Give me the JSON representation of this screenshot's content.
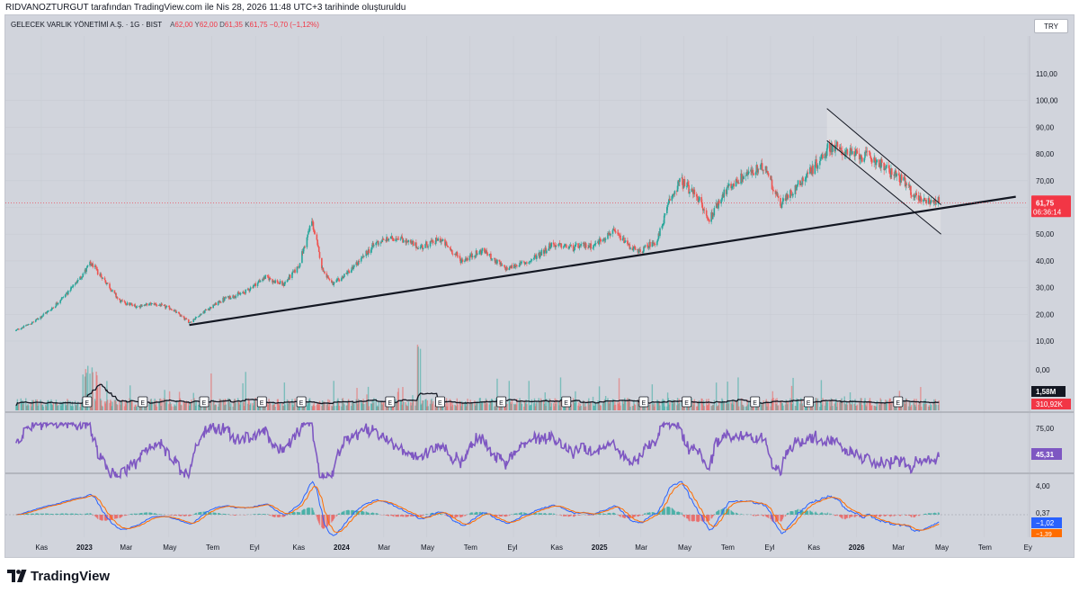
{
  "header": {
    "credit": "RIDVANOZTURGUT tarafından TradingView.com ile Nis 28, 2026 11:48 UTC+3 tarihinde oluşturuldu"
  },
  "legend": {
    "symbol": "GELECEK VARLIK YÖNETİMİ A.Ş. · 1G · BIST",
    "open_label": "A",
    "open": "62,00",
    "high_label": "Y",
    "high": "62,00",
    "low_label": "D",
    "low": "61,35",
    "close_label": "K",
    "close": "61,75",
    "change": "−0,70 (−1,12%)"
  },
  "currency": "TRY",
  "footer": {
    "brand": "TradingView"
  },
  "colors": {
    "background": "#d1d4dc",
    "up": "#26a69a",
    "down": "#ef5350",
    "rsi": "#7e57c2",
    "macd": "#2962ff",
    "signal": "#ff6d00",
    "trendline": "#131722",
    "last_price_badge": "#f23645"
  },
  "chart_data": [
    {
      "type": "candlestick",
      "pane": "price",
      "ylim": [
        10,
        110
      ],
      "y_ticks": [
        "110,00",
        "100,00",
        "90,00",
        "80,00",
        "70,00",
        "60,00",
        "50,00",
        "40,00",
        "30,00",
        "20,00",
        "10,00"
      ],
      "x_ticks": [
        "Kas",
        "2023",
        "Mar",
        "May",
        "Tem",
        "Eyl",
        "Kas",
        "2024",
        "Mar",
        "May",
        "Tem",
        "Eyl",
        "Kas",
        "2025",
        "Mar",
        "May",
        "Tem",
        "Eyl",
        "Kas",
        "2026",
        "Mar",
        "May",
        "Tem",
        "Ey"
      ],
      "x_tick_dates": [
        "2022-11",
        "2023-01",
        "2023-03",
        "2023-05",
        "2023-07",
        "2023-09",
        "2023-11",
        "2024-01",
        "2024-03",
        "2024-05",
        "2024-07",
        "2024-09",
        "2024-11",
        "2025-01",
        "2025-03",
        "2025-05",
        "2025-07",
        "2025-09",
        "2025-11",
        "2026-01",
        "2026-03",
        "2026-05",
        "2026-07",
        "2026-09"
      ],
      "close_path": [
        [
          "2022-09-26",
          14
        ],
        [
          "2022-10-20",
          17
        ],
        [
          "2022-11-15",
          22
        ],
        [
          "2022-12-15",
          30
        ],
        [
          "2023-01-10",
          39
        ],
        [
          "2023-02-01",
          32
        ],
        [
          "2023-02-20",
          25
        ],
        [
          "2023-03-15",
          23
        ],
        [
          "2023-04-10",
          24
        ],
        [
          "2023-05-05",
          22
        ],
        [
          "2023-05-30",
          17
        ],
        [
          "2023-06-25",
          22
        ],
        [
          "2023-07-20",
          26
        ],
        [
          "2023-08-15",
          28
        ],
        [
          "2023-09-15",
          34
        ],
        [
          "2023-10-10",
          31
        ],
        [
          "2023-11-01",
          38
        ],
        [
          "2023-11-20",
          55
        ],
        [
          "2023-12-05",
          37
        ],
        [
          "2023-12-20",
          31
        ],
        [
          "2024-01-20",
          38
        ],
        [
          "2024-02-20",
          47
        ],
        [
          "2024-03-20",
          49
        ],
        [
          "2024-04-20",
          45
        ],
        [
          "2024-05-20",
          48
        ],
        [
          "2024-06-20",
          40
        ],
        [
          "2024-07-20",
          44
        ],
        [
          "2024-08-20",
          37
        ],
        [
          "2024-09-25",
          40
        ],
        [
          "2024-10-25",
          46
        ],
        [
          "2024-11-25",
          45
        ],
        [
          "2024-12-25",
          46
        ],
        [
          "2025-01-20",
          51
        ],
        [
          "2025-02-25",
          43
        ],
        [
          "2025-03-25",
          48
        ],
        [
          "2025-04-10",
          62
        ],
        [
          "2025-04-25",
          70
        ],
        [
          "2025-05-20",
          64
        ],
        [
          "2025-06-05",
          55
        ],
        [
          "2025-06-25",
          65
        ],
        [
          "2025-07-25",
          72
        ],
        [
          "2025-08-25",
          75
        ],
        [
          "2025-09-15",
          61
        ],
        [
          "2025-10-15",
          70
        ],
        [
          "2025-11-05",
          76
        ],
        [
          "2025-11-25",
          83
        ],
        [
          "2025-12-25",
          80
        ],
        [
          "2026-01-20",
          79
        ],
        [
          "2026-02-15",
          74
        ],
        [
          "2026-03-05",
          71
        ],
        [
          "2026-03-25",
          64
        ],
        [
          "2026-04-28",
          61.75
        ]
      ],
      "last_price": "61,75",
      "last_price_countdown": "06:36:14",
      "trendline": {
        "from": [
          "2023-05-30",
          16
        ],
        "to": [
          "2026-08-15",
          64
        ]
      },
      "channel": {
        "upper": {
          "from": [
            "2025-11-20",
            97
          ],
          "to": [
            "2026-05-01",
            61
          ]
        },
        "lower": {
          "from": [
            "2025-11-20",
            85
          ],
          "to": [
            "2026-05-01",
            50
          ]
        }
      }
    },
    {
      "type": "bar",
      "pane": "volume",
      "y_ticks": [
        "0,00"
      ],
      "last_volume_label": "1,58M",
      "last_volume_ma_label": "310,92K",
      "earnings_marker": "E",
      "earnings_dates": [
        "2023-01-05",
        "2023-03-25",
        "2023-06-20",
        "2023-09-10",
        "2023-11-05",
        "2024-03-10",
        "2024-05-20",
        "2024-08-15",
        "2024-11-15",
        "2025-03-05",
        "2025-05-05",
        "2025-08-10",
        "2025-10-25",
        "2026-03-01"
      ]
    },
    {
      "type": "line",
      "pane": "rsi",
      "y_ticks": [
        "75,00",
        "50,00"
      ],
      "last_value_label": "45,31"
    },
    {
      "type": "line",
      "pane": "macd",
      "y_ticks": [
        "4,00"
      ],
      "histogram_label": "0,37",
      "macd_label": "−1,02",
      "signal_label": "−1,39"
    }
  ]
}
